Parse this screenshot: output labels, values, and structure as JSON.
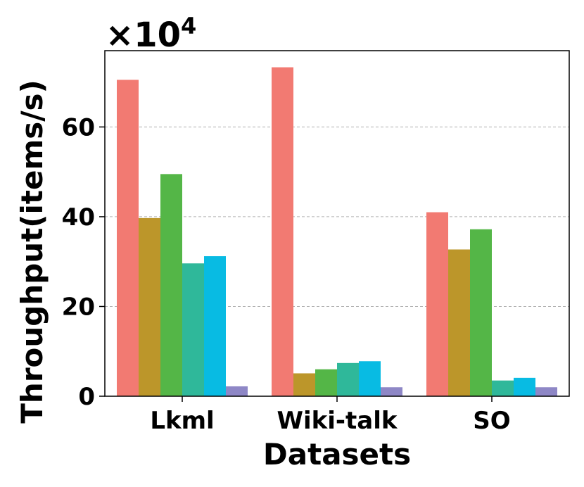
{
  "chart_data": {
    "type": "bar",
    "categories": [
      "Lkml",
      "Wiki-talk",
      "SO"
    ],
    "series": [
      {
        "color": "#f27a72",
        "values": [
          70.5,
          73.3,
          41.0
        ]
      },
      {
        "color": "#bc962a",
        "values": [
          39.7,
          5.1,
          32.7
        ]
      },
      {
        "color": "#54b647",
        "values": [
          49.5,
          6.0,
          37.2
        ]
      },
      {
        "color": "#2fb89a",
        "values": [
          29.6,
          7.4,
          3.5
        ]
      },
      {
        "color": "#08bbe3",
        "values": [
          31.2,
          7.8,
          4.1
        ]
      },
      {
        "color": "#8e87c6",
        "values": [
          2.2,
          2.0,
          2.0
        ]
      }
    ],
    "xlabel": "Datasets",
    "ylabel": "Throughput(items/s)",
    "multiplier": {
      "base": "×10",
      "exponent": "4"
    },
    "yticks": [
      0,
      20,
      40,
      60
    ],
    "ylim": [
      0,
      77
    ],
    "grid": "y"
  }
}
